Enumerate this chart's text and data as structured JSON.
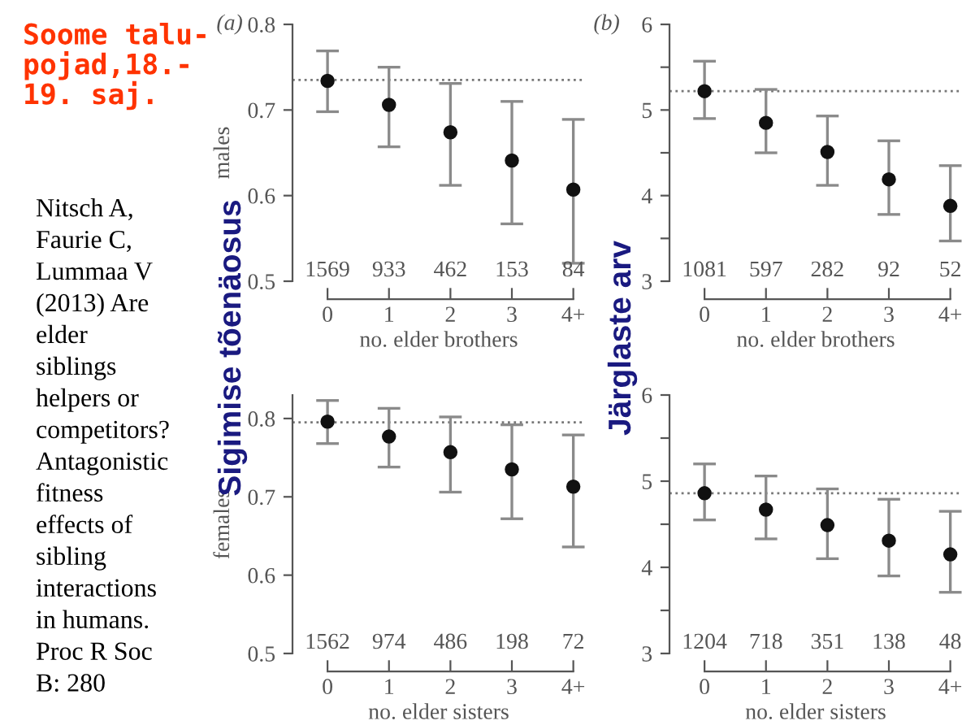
{
  "chart_data": [
    {
      "type": "scatter",
      "title": "(a)",
      "ylabel": "males",
      "xlabel": "no. elder brothers",
      "categories": [
        "0",
        "1",
        "2",
        "3",
        "4+"
      ],
      "values": [
        0.734,
        0.706,
        0.674,
        0.641,
        0.607
      ],
      "errors": [
        [
          0.698,
          0.769
        ],
        [
          0.657,
          0.75
        ],
        [
          0.612,
          0.731
        ],
        [
          0.567,
          0.71
        ],
        [
          0.521,
          0.689
        ]
      ],
      "color": "#111111",
      "marker": "circle",
      "ylim": [
        0.5,
        0.8
      ],
      "yticks": [
        0.5,
        0.6,
        0.7,
        0.8
      ],
      "ref_lines": [
        {
          "axis": "y",
          "value": 0.735,
          "color": "#777777",
          "line_style": "dotted"
        }
      ],
      "annotations": [
        "Soome talu-\npojad,18.-\n19. saj.",
        "Nitsch A,\nFaurie C,\nLummaa V\n(2013) Are\nelder\nsiblings\nhelpers or\ncompetitors?\nAntagonistic\nfitness\neffects of\nsibling\ninteractions\nin humans.\nProc R Soc\nB: 280",
        "Sigimise tõenäosus",
        "1569",
        "933",
        "462",
        "153",
        "84"
      ]
    },
    {
      "type": "scatter",
      "title": "(b)",
      "xlabel": "no. elder brothers",
      "categories": [
        "0",
        "1",
        "2",
        "3",
        "4+"
      ],
      "values": [
        5.22,
        4.85,
        4.51,
        4.19,
        3.88
      ],
      "errors": [
        [
          4.9,
          5.57
        ],
        [
          4.5,
          5.24
        ],
        [
          4.12,
          4.93
        ],
        [
          3.78,
          4.64
        ],
        [
          3.47,
          4.35
        ]
      ],
      "color": "#111111",
      "marker": "circle",
      "ylim": [
        3,
        6
      ],
      "yticks": [
        3,
        {
          "value": 3.5,
          "label": null
        },
        4,
        {
          "value": 4.5,
          "label": null
        },
        5,
        {
          "value": 5.5,
          "label": null
        },
        6
      ],
      "ref_lines": [
        {
          "axis": "y",
          "value": 5.22,
          "color": "#777777",
          "line_style": "dotted"
        }
      ],
      "annotations": [
        "Järglaste arv",
        "1081",
        "597",
        "282",
        "92",
        "52"
      ]
    },
    {
      "type": "scatter",
      "ylabel": "females",
      "xlabel": "no. elder sisters",
      "categories": [
        "0",
        "1",
        "2",
        "3",
        "4+"
      ],
      "values": [
        0.796,
        0.777,
        0.757,
        0.735,
        0.713
      ],
      "errors": [
        [
          0.768,
          0.823
        ],
        [
          0.738,
          0.813
        ],
        [
          0.706,
          0.802
        ],
        [
          0.672,
          0.792
        ],
        [
          0.636,
          0.779
        ]
      ],
      "color": "#111111",
      "marker": "circle",
      "ylim": [
        0.5,
        0.83
      ],
      "yticks": [
        0.5,
        0.6,
        0.7,
        0.8
      ],
      "ref_lines": [
        {
          "axis": "y",
          "value": 0.795,
          "color": "#777777",
          "line_style": "dotted"
        }
      ],
      "annotations": [
        "1562",
        "974",
        "486",
        "198",
        "72"
      ]
    },
    {
      "type": "scatter",
      "xlabel": "no. elder sisters",
      "categories": [
        "0",
        "1",
        "2",
        "3",
        "4+"
      ],
      "values": [
        4.86,
        4.67,
        4.49,
        4.31,
        4.15
      ],
      "errors": [
        [
          4.55,
          5.2
        ],
        [
          4.33,
          5.06
        ],
        [
          4.1,
          4.91
        ],
        [
          3.9,
          4.79
        ],
        [
          3.71,
          4.65
        ]
      ],
      "color": "#111111",
      "marker": "circle",
      "ylim": [
        3,
        6
      ],
      "yticks": [
        3,
        {
          "value": 3.5,
          "label": null
        },
        4,
        {
          "value": 4.5,
          "label": null
        },
        5,
        {
          "value": 5.5,
          "label": null
        },
        6
      ],
      "ref_lines": [
        {
          "axis": "y",
          "value": 4.86,
          "color": "#777777",
          "line_style": "dotted"
        }
      ],
      "annotations": [
        "1204",
        "718",
        "351",
        "138",
        "48"
      ]
    }
  ]
}
